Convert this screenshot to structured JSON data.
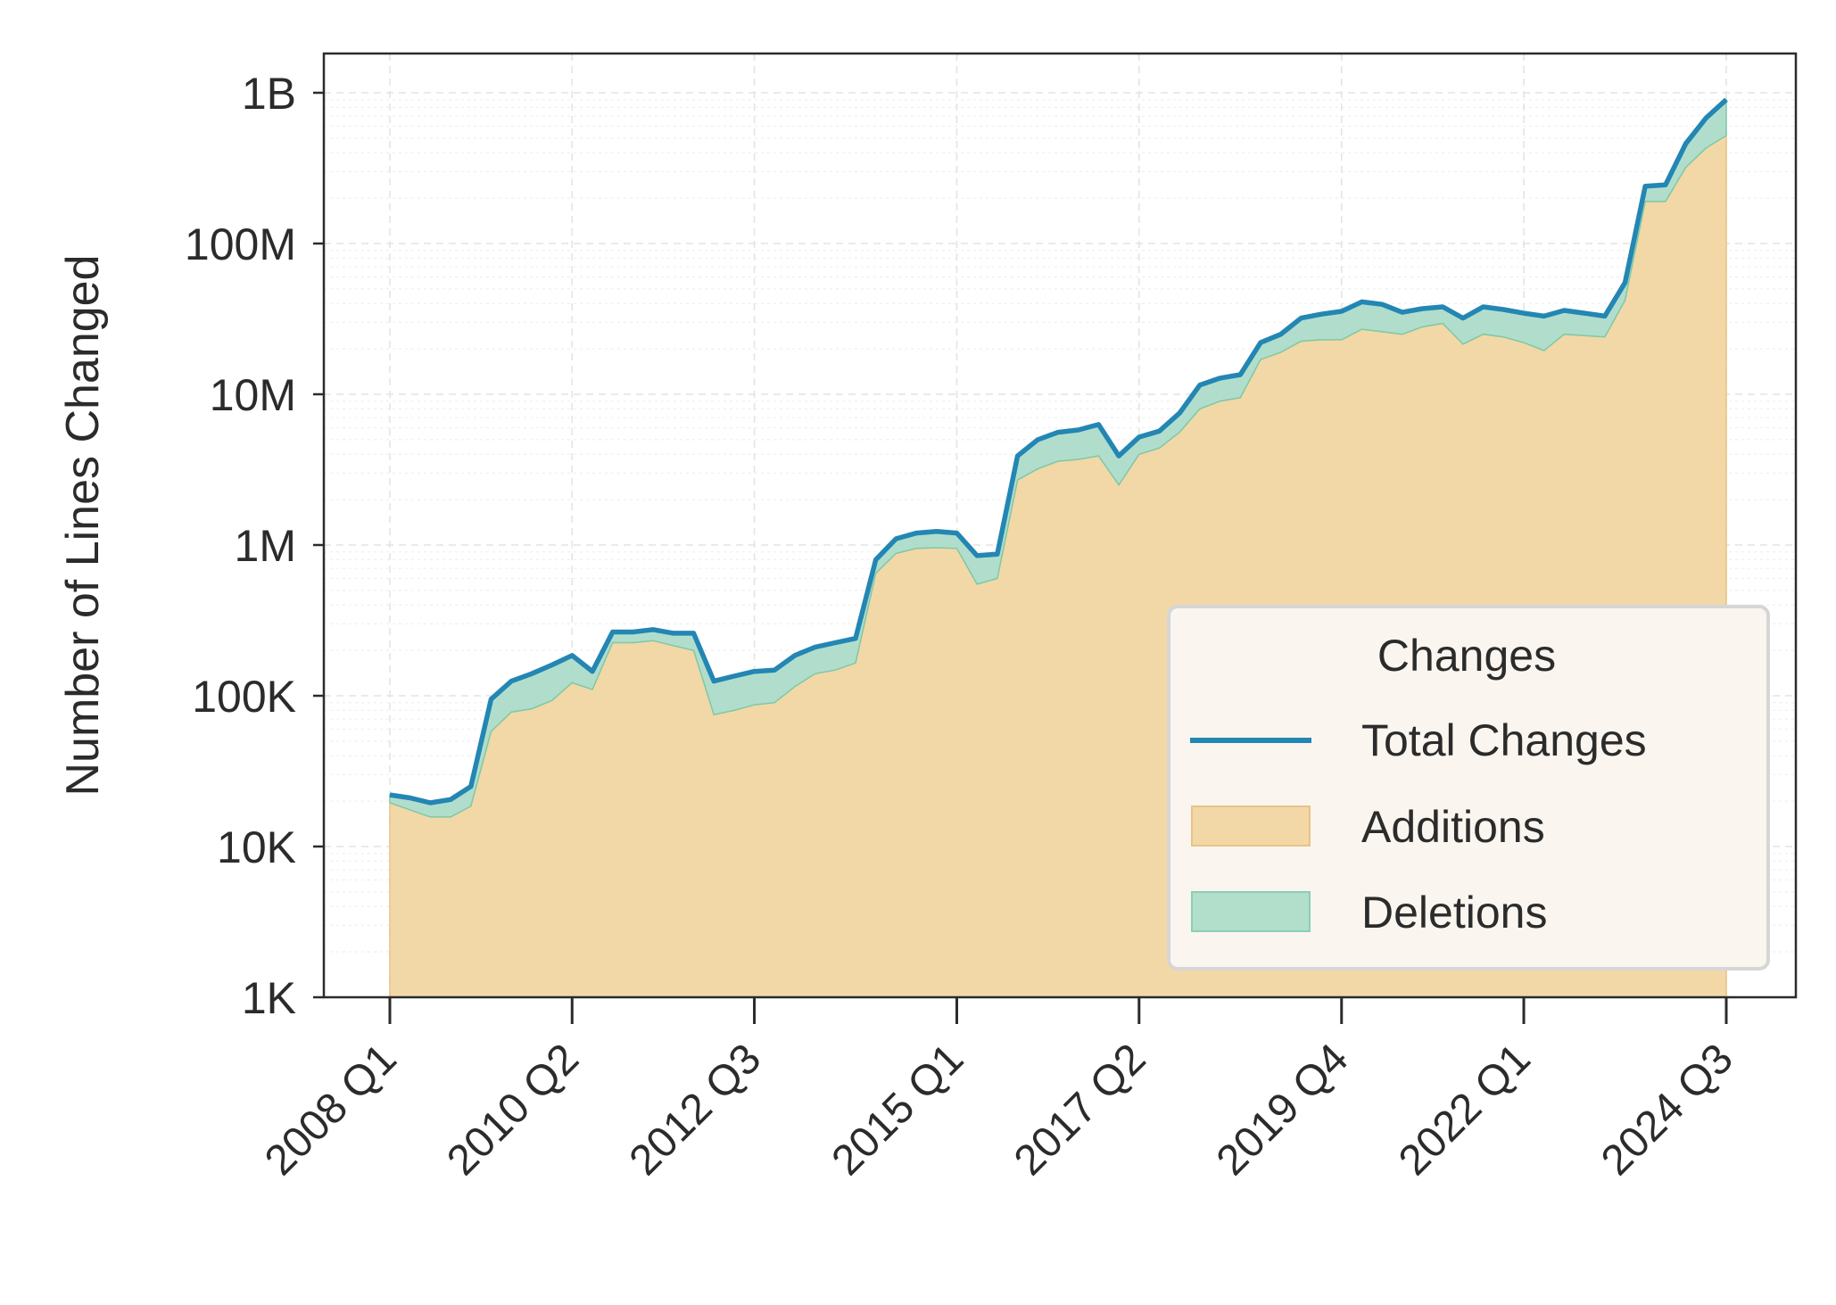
{
  "chart_data": {
    "type": "area",
    "title": "",
    "xlabel": "",
    "ylabel": "Number of Lines Changed",
    "yscale": "log",
    "ylim": [
      1000,
      1500000000
    ],
    "yticks": [
      {
        "value": 1000,
        "label": "1K"
      },
      {
        "value": 10000,
        "label": "10K"
      },
      {
        "value": 100000,
        "label": "100K"
      },
      {
        "value": 1000000,
        "label": "1M"
      },
      {
        "value": 10000000,
        "label": "10M"
      },
      {
        "value": 100000000,
        "label": "100M"
      },
      {
        "value": 1000000000,
        "label": "1B"
      }
    ],
    "xticks": [
      "2008 Q1",
      "2010 Q2",
      "2012 Q3",
      "2015 Q1",
      "2017 Q2",
      "2019 Q4",
      "2022 Q1",
      "2024 Q3"
    ],
    "grid": true,
    "legend": {
      "title": "Changes",
      "placement": "lower-right",
      "entries": [
        {
          "label": "Total Changes",
          "kind": "line",
          "color": "#2386b3"
        },
        {
          "label": "Additions",
          "kind": "area",
          "color": "#f2d8a7"
        },
        {
          "label": "Deletions",
          "kind": "area",
          "color": "#b2decc"
        }
      ]
    },
    "x": [
      "2008 Q1",
      "2008 Q2",
      "2008 Q3",
      "2008 Q4",
      "2009 Q1",
      "2009 Q2",
      "2009 Q3",
      "2009 Q4",
      "2010 Q1",
      "2010 Q2",
      "2010 Q3",
      "2010 Q4",
      "2011 Q1",
      "2011 Q2",
      "2011 Q3",
      "2011 Q4",
      "2012 Q1",
      "2012 Q2",
      "2012 Q3",
      "2012 Q4",
      "2013 Q1",
      "2013 Q2",
      "2013 Q3",
      "2013 Q4",
      "2014 Q1",
      "2014 Q2",
      "2014 Q3",
      "2014 Q4",
      "2015 Q1",
      "2015 Q2",
      "2015 Q3",
      "2015 Q4",
      "2016 Q1",
      "2016 Q2",
      "2016 Q3",
      "2016 Q4",
      "2017 Q1",
      "2017 Q2",
      "2017 Q3",
      "2017 Q4",
      "2018 Q1",
      "2018 Q2",
      "2018 Q3",
      "2018 Q4",
      "2019 Q1",
      "2019 Q2",
      "2019 Q3",
      "2019 Q4",
      "2020 Q1",
      "2020 Q2",
      "2020 Q3",
      "2020 Q4",
      "2021 Q1",
      "2021 Q2",
      "2021 Q3",
      "2021 Q4",
      "2022 Q1",
      "2022 Q2",
      "2022 Q3",
      "2022 Q4",
      "2023 Q1",
      "2023 Q2",
      "2023 Q3",
      "2023 Q4",
      "2024 Q1",
      "2024 Q2",
      "2024 Q3"
    ],
    "series": [
      {
        "name": "Total Changes",
        "values": [
          22000,
          21000,
          19500,
          20500,
          25000,
          95000,
          125000,
          140000,
          160000,
          185000,
          145000,
          265000,
          265000,
          275000,
          260000,
          260000,
          125000,
          135000,
          145000,
          148000,
          185000,
          210000,
          225000,
          240000,
          800000,
          1100000,
          1200000,
          1230000,
          1200000,
          850000,
          870000,
          3900000,
          5000000,
          5600000,
          5800000,
          6300000,
          3900000,
          5200000,
          5700000,
          7500000,
          11500000,
          12800000,
          13500000,
          22000000,
          25000000,
          32000000,
          34000000,
          35500000,
          41000000,
          39500000,
          35000000,
          37000000,
          38000000,
          32000000,
          38000000,
          36500000,
          34500000,
          33000000,
          36000000,
          34500000,
          33000000,
          55000000,
          240000000,
          245000000,
          460000000,
          680000000,
          900000000
        ]
      },
      {
        "name": "Additions",
        "values": [
          19500,
          17500,
          15700,
          15700,
          18500,
          58000,
          78000,
          82000,
          93000,
          122000,
          110000,
          225000,
          225000,
          232000,
          215000,
          200000,
          75000,
          80000,
          87000,
          90000,
          115000,
          140000,
          148000,
          165000,
          650000,
          880000,
          950000,
          960000,
          950000,
          550000,
          600000,
          2700000,
          3200000,
          3600000,
          3700000,
          3900000,
          2500000,
          4000000,
          4400000,
          5600000,
          8000000,
          9000000,
          9500000,
          17000000,
          19000000,
          22500000,
          23000000,
          23000000,
          27000000,
          26000000,
          25000000,
          28000000,
          29500000,
          21500000,
          25000000,
          24000000,
          22000000,
          19500000,
          25000000,
          24500000,
          24000000,
          42000000,
          190000000,
          190000000,
          320000000,
          430000000,
          520000000
        ]
      }
    ]
  }
}
